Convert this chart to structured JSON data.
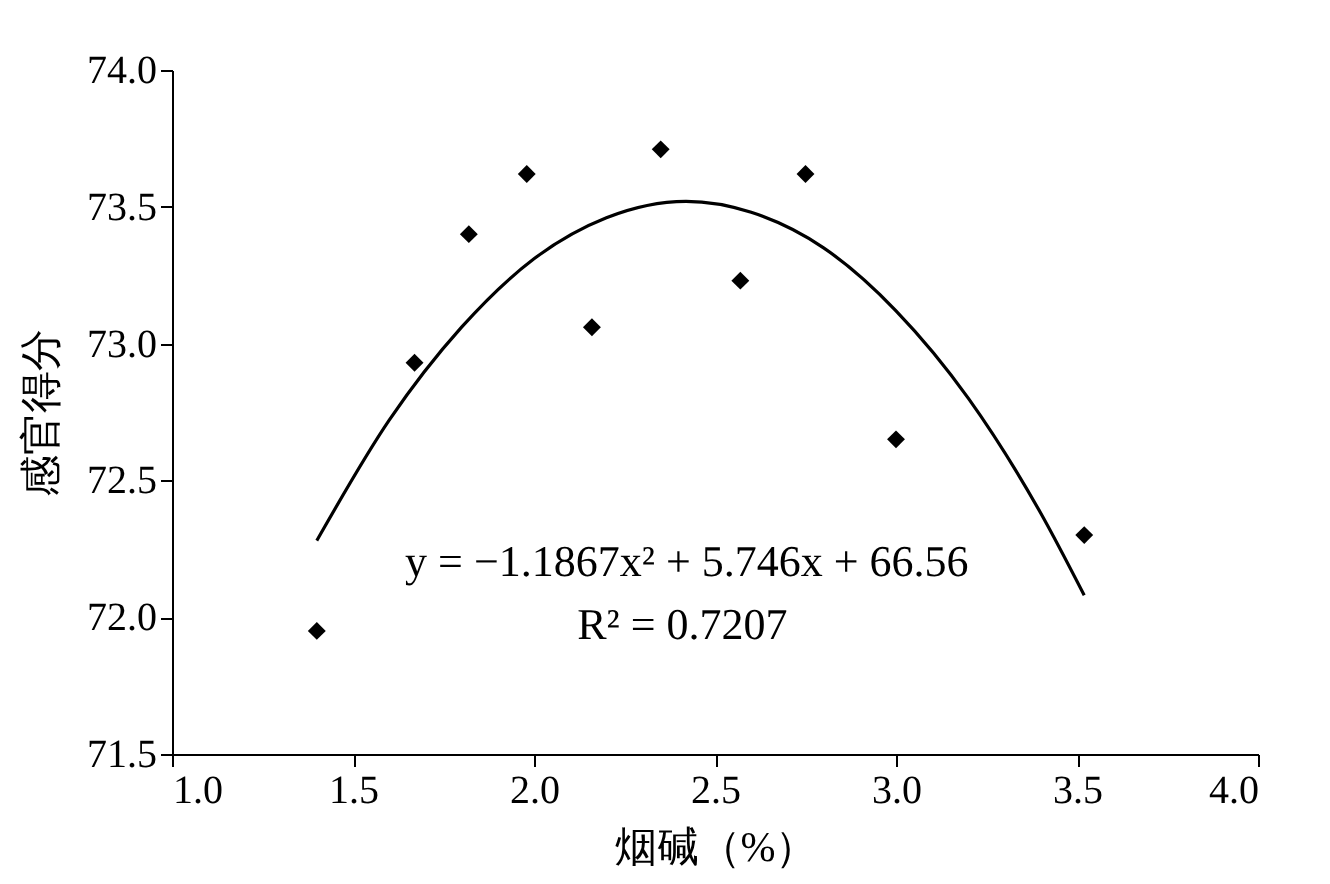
{
  "chart_data": {
    "type": "scatter",
    "xlabel": "烟碱（%）",
    "ylabel": "感官得分",
    "xlim": [
      1.0,
      4.0
    ],
    "xticks": [
      {
        "value": 1.0,
        "label": "1.0"
      },
      {
        "value": 1.5,
        "label": "1.5"
      },
      {
        "value": 2.0,
        "label": "2.0"
      },
      {
        "value": 2.5,
        "label": "2.5"
      },
      {
        "value": 3.0,
        "label": "3.0"
      },
      {
        "value": 3.5,
        "label": "3.5"
      },
      {
        "value": 4.0,
        "label": "4.0"
      }
    ],
    "ylim": [
      71.5,
      74.0
    ],
    "yticks": [
      {
        "value": 71.5,
        "label": "71.5"
      },
      {
        "value": 72.0,
        "label": "72.0"
      },
      {
        "value": 72.5,
        "label": "72.5"
      },
      {
        "value": 73.0,
        "label": "73.0"
      },
      {
        "value": 73.5,
        "label": "73.5"
      },
      {
        "value": 74.0,
        "label": "74.0"
      }
    ],
    "grid": false,
    "marker": "diamond",
    "series": [
      {
        "color": "#000000",
        "x": [
          1.4,
          1.67,
          1.82,
          1.98,
          2.16,
          2.35,
          2.57,
          2.75,
          3.0,
          3.52
        ],
        "values": [
          71.95,
          72.93,
          73.4,
          73.62,
          73.06,
          73.71,
          73.23,
          73.62,
          72.65,
          72.3
        ]
      },
      {
        "type": "line",
        "color": "#000000",
        "marker": "none",
        "line_style": "solid",
        "x": [
          1.4,
          1.6,
          1.8,
          2.0,
          2.2,
          2.42,
          2.6,
          2.8,
          3.0,
          3.2,
          3.4,
          3.52
        ],
        "values": [
          72.28,
          72.72,
          73.06,
          73.31,
          73.46,
          73.52,
          73.48,
          73.35,
          73.12,
          72.8,
          72.38,
          72.08
        ]
      }
    ],
    "annotations": [
      "y = −1.1867x² + 5.746x + 66.56",
      "R² = 0.7207"
    ]
  }
}
